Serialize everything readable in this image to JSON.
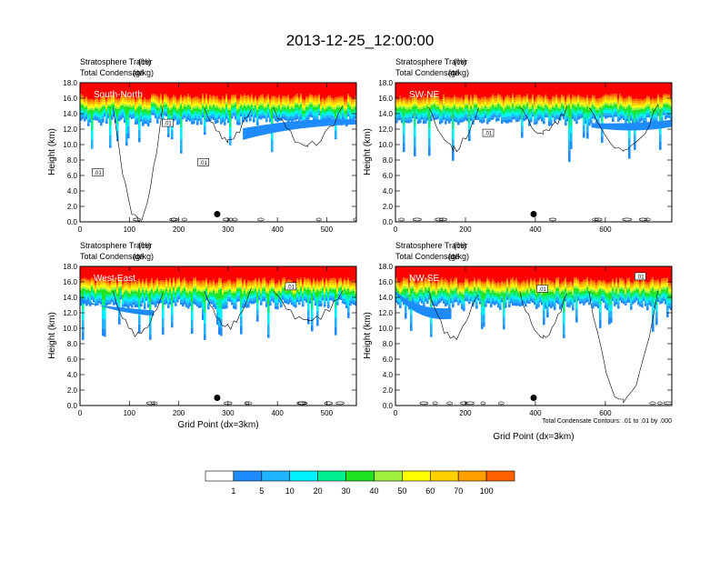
{
  "title": "2013-12-25_12:00:00",
  "panel_header": {
    "line1": "Stratosphere Tracer",
    "line1_unit": "(%)",
    "line2": "Total Condensate",
    "line2_unit": "(g/kg)"
  },
  "axis": {
    "ylabel": "Height (km)",
    "xlabel": "Grid Point (dx=3km)"
  },
  "footnote": "Total Condensate Contours: .01 to .01 by .000",
  "contour_label": ".01",
  "colorbar": {
    "labels": [
      "1",
      "5",
      "10",
      "20",
      "30",
      "40",
      "50",
      "60",
      "70",
      "100"
    ],
    "colors": [
      "#ffffff",
      "#1e8cff",
      "#20b4ff",
      "#00f0ff",
      "#00f090",
      "#20e420",
      "#a0f040",
      "#ffff00",
      "#ffd000",
      "#ffa000",
      "#ff6000",
      "#ff0000"
    ]
  },
  "chart_data": [
    {
      "type": "heatmap",
      "name": "South-North",
      "label": "South-North",
      "xlim": [
        0,
        560
      ],
      "ylim": [
        0,
        18
      ],
      "xticks": [
        0,
        100,
        200,
        300,
        400,
        500
      ],
      "yticks": [
        "0.0",
        "2.0",
        "4.0",
        "6.0",
        "8.0",
        "10.0",
        "12.0",
        "14.0",
        "16.0",
        "18.0"
      ],
      "marker_x": 278,
      "marker_y": 1.0,
      "tracer_base_km": 14.8,
      "contour_labels": [
        {
          "x": 178,
          "y": 12.7
        },
        {
          "x": 36,
          "y": 6.3
        },
        {
          "x": 250,
          "y": 7.6
        }
      ]
    },
    {
      "type": "heatmap",
      "name": "SW-NE",
      "label": "SW-NE",
      "xlim": [
        0,
        790
      ],
      "ylim": [
        0,
        18
      ],
      "xticks": [
        0,
        200,
        400,
        600
      ],
      "yticks": [
        "0.0",
        "2.0",
        "4.0",
        "6.0",
        "8.0",
        "10.0",
        "12.0",
        "14.0",
        "16.0",
        "18.0"
      ],
      "marker_x": 395,
      "marker_y": 1.0,
      "tracer_base_km": 13.6,
      "contour_labels": [
        {
          "x": 265,
          "y": 11.4
        }
      ]
    },
    {
      "type": "heatmap",
      "name": "West-East",
      "label": "West-East",
      "xlim": [
        0,
        560
      ],
      "ylim": [
        0,
        18
      ],
      "xticks": [
        0,
        100,
        200,
        300,
        400,
        500
      ],
      "yticks": [
        "0.0",
        "2.0",
        "4.0",
        "6.0",
        "8.0",
        "10.0",
        "12.0",
        "14.0",
        "16.0",
        "18.0"
      ],
      "marker_x": 278,
      "marker_y": 1.0,
      "tracer_base_km": 14.2,
      "contour_labels": [
        {
          "x": 427,
          "y": 15.3
        }
      ]
    },
    {
      "type": "heatmap",
      "name": "NW-SE",
      "label": "NW-SE",
      "xlim": [
        0,
        790
      ],
      "ylim": [
        0,
        18
      ],
      "xticks": [
        0,
        200,
        400,
        600
      ],
      "yticks": [
        "0.0",
        "2.0",
        "4.0",
        "6.0",
        "8.0",
        "10.0",
        "12.0",
        "14.0",
        "16.0",
        "18.0"
      ],
      "marker_x": 395,
      "marker_y": 1.0,
      "tracer_base_km": 14.4,
      "contour_labels": [
        {
          "x": 420,
          "y": 15.0
        },
        {
          "x": 700,
          "y": 16.6
        }
      ]
    }
  ]
}
